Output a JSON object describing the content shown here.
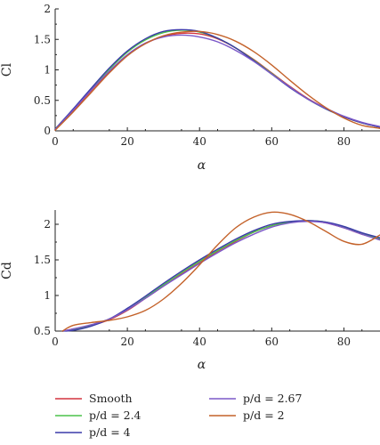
{
  "colors": {
    "Smooth": "#d4343f",
    "p/d = 2.4": "#4cc24a",
    "p/d = 4": "#3a3aa8",
    "p/d = 2.67": "#7b58c8",
    "p/d = 2": "#c4622a"
  },
  "legend": {
    "placement": "bottom",
    "entries": [
      "Smooth",
      "p/d = 2.4",
      "p/d = 4",
      "p/d = 2.67",
      "p/d = 2"
    ]
  },
  "chart_data": [
    {
      "type": "line",
      "xlabel": "α",
      "ylabel": "Cl",
      "xlim": [
        0,
        90
      ],
      "ylim": [
        0,
        2
      ],
      "xticks": [
        0,
        20,
        40,
        60,
        80
      ],
      "yticks": [
        0,
        0.5,
        1,
        1.5,
        2
      ],
      "ytick_labels": [
        "0",
        "0.5",
        "1",
        "1.5",
        "2"
      ],
      "grid": false,
      "x": [
        0,
        5,
        10,
        15,
        20,
        25,
        30,
        35,
        40,
        45,
        50,
        55,
        60,
        65,
        70,
        75,
        80,
        85,
        90
      ],
      "series": [
        {
          "name": "Smooth",
          "values": [
            0.02,
            0.33,
            0.66,
            0.97,
            1.24,
            1.43,
            1.55,
            1.6,
            1.59,
            1.51,
            1.36,
            1.17,
            0.95,
            0.73,
            0.53,
            0.37,
            0.23,
            0.13,
            0.06
          ]
        },
        {
          "name": "p/d = 2.4",
          "values": [
            0.03,
            0.35,
            0.69,
            1.01,
            1.29,
            1.49,
            1.61,
            1.65,
            1.62,
            1.52,
            1.36,
            1.16,
            0.94,
            0.72,
            0.52,
            0.36,
            0.23,
            0.13,
            0.06
          ]
        },
        {
          "name": "p/d = 4",
          "values": [
            0.03,
            0.36,
            0.7,
            1.03,
            1.31,
            1.51,
            1.63,
            1.66,
            1.63,
            1.52,
            1.36,
            1.15,
            0.93,
            0.71,
            0.52,
            0.36,
            0.23,
            0.13,
            0.06
          ]
        },
        {
          "name": "p/d = 2.67",
          "values": [
            0.02,
            0.34,
            0.67,
            0.98,
            1.25,
            1.44,
            1.54,
            1.57,
            1.54,
            1.46,
            1.32,
            1.14,
            0.93,
            0.72,
            0.52,
            0.37,
            0.24,
            0.14,
            0.07
          ]
        },
        {
          "name": "p/d = 2",
          "values": [
            0.01,
            0.31,
            0.63,
            0.95,
            1.23,
            1.43,
            1.56,
            1.62,
            1.63,
            1.58,
            1.47,
            1.3,
            1.08,
            0.83,
            0.59,
            0.38,
            0.21,
            0.09,
            0.04
          ]
        }
      ]
    },
    {
      "type": "line",
      "xlabel": "α",
      "ylabel": "Cd",
      "xlim": [
        0,
        90
      ],
      "ylim": [
        0.5,
        2.2
      ],
      "xticks": [
        0,
        20,
        40,
        60,
        80
      ],
      "yticks": [
        0.5,
        1,
        1.5,
        2
      ],
      "ytick_labels": [
        "0.5",
        "1",
        "1.5",
        "2"
      ],
      "grid": false,
      "x": [
        2,
        5,
        10,
        15,
        20,
        25,
        30,
        35,
        40,
        45,
        50,
        55,
        60,
        65,
        70,
        75,
        80,
        85,
        90
      ],
      "series": [
        {
          "name": "Smooth",
          "values": [
            0.5,
            0.53,
            0.58,
            0.66,
            0.79,
            0.96,
            1.13,
            1.3,
            1.46,
            1.62,
            1.76,
            1.89,
            1.98,
            2.03,
            2.05,
            2.02,
            1.95,
            1.86,
            1.79
          ]
        },
        {
          "name": "p/d = 2.4",
          "values": [
            0.5,
            0.52,
            0.58,
            0.67,
            0.8,
            0.97,
            1.15,
            1.32,
            1.48,
            1.63,
            1.77,
            1.89,
            1.98,
            2.03,
            2.05,
            2.03,
            1.96,
            1.87,
            1.8
          ]
        },
        {
          "name": "p/d = 4",
          "values": [
            0.5,
            0.51,
            0.57,
            0.67,
            0.82,
            0.99,
            1.17,
            1.34,
            1.5,
            1.65,
            1.79,
            1.91,
            2.0,
            2.04,
            2.05,
            2.03,
            1.97,
            1.88,
            1.81
          ]
        },
        {
          "name": "p/d = 2.67",
          "values": [
            0.5,
            0.53,
            0.59,
            0.67,
            0.8,
            0.96,
            1.13,
            1.29,
            1.45,
            1.6,
            1.74,
            1.86,
            1.96,
            2.02,
            2.04,
            2.02,
            1.95,
            1.86,
            1.78
          ]
        },
        {
          "name": "p/d = 2",
          "values": [
            0.5,
            0.58,
            0.62,
            0.65,
            0.7,
            0.79,
            0.95,
            1.17,
            1.43,
            1.71,
            1.95,
            2.1,
            2.17,
            2.14,
            2.04,
            1.9,
            1.76,
            1.72,
            1.85
          ]
        }
      ]
    }
  ]
}
